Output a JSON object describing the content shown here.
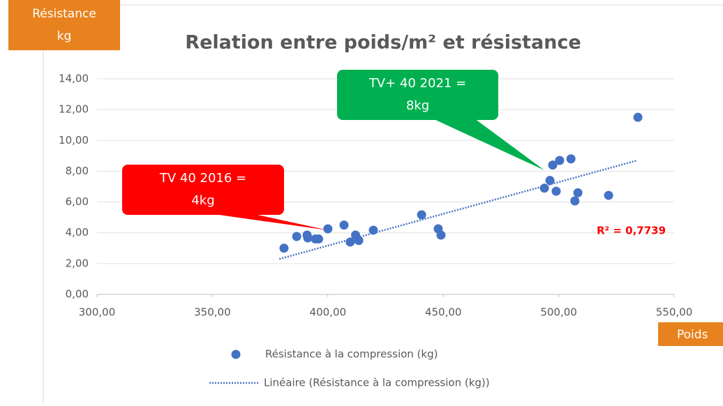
{
  "chart_data": {
    "type": "scatter",
    "title": "Relation entre poids/m² et résistance",
    "y_axis_label": [
      "Résistance",
      "kg"
    ],
    "x_axis_label": "Poids",
    "xlim": [
      300,
      550
    ],
    "ylim": [
      0,
      14
    ],
    "xticks": [
      {
        "value": 300,
        "label": "300,00"
      },
      {
        "value": 350,
        "label": "350,00"
      },
      {
        "value": 400,
        "label": "400,00"
      },
      {
        "value": 450,
        "label": "450,00"
      },
      {
        "value": 500,
        "label": "500,00"
      },
      {
        "value": 550,
        "label": "550,00"
      }
    ],
    "yticks": [
      {
        "value": 0,
        "label": "0,00"
      },
      {
        "value": 2,
        "label": "2,00"
      },
      {
        "value": 4,
        "label": "4,00"
      },
      {
        "value": 6,
        "label": "6,00"
      },
      {
        "value": 8,
        "label": "8,00"
      },
      {
        "value": 10,
        "label": "10,00"
      },
      {
        "value": 12,
        "label": "12,00"
      },
      {
        "value": 14,
        "label": "14,00"
      }
    ],
    "grid": true,
    "series": [
      {
        "name": "Résistance à la compression (kg)",
        "color": "#4472c4",
        "style": "dot",
        "x": [
          381,
          386.5,
          391.3,
          391,
          394.6,
          396,
          400,
          407,
          409.7,
          412,
          413.4,
          419.7,
          440.6,
          447.8,
          449,
          493.8,
          496.2,
          497.4,
          498.9,
          500.4,
          505.3,
          507,
          508.3,
          521.6,
          534.3
        ],
        "values": [
          3.0,
          3.76,
          3.67,
          3.85,
          3.6,
          3.6,
          4.26,
          4.5,
          3.4,
          3.85,
          3.5,
          4.17,
          5.17,
          4.26,
          3.85,
          6.9,
          7.4,
          8.4,
          6.7,
          8.7,
          8.8,
          6.07,
          6.6,
          6.43,
          11.5
        ]
      },
      {
        "name": "Linéaire (Résistance à la compression (kg))",
        "color": "#4472c4",
        "style": "dotted",
        "x": [
          379,
          534
        ],
        "values": [
          2.3,
          8.7
        ]
      }
    ],
    "r_squared_label": "R² = 0,7739",
    "annotations": [
      {
        "lines": [
          "TV 40 2016 =",
          "4kg"
        ],
        "color": "#ff0000"
      },
      {
        "lines": [
          "TV+ 40 2021 =",
          "8kg"
        ],
        "color": "#00b050"
      }
    ]
  }
}
